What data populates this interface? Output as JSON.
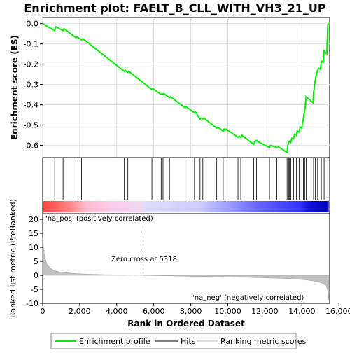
{
  "chart_data": {
    "type": "line",
    "title": "Enrichment plot: FAELT_B_CLL_WITH_VH3_21_UP",
    "xlabel": "Rank in Ordered Dataset",
    "colors": {
      "profile": "#00ee00",
      "hits": "#000000",
      "ranking": "#c0c0c0",
      "pos_label": "#cc0000",
      "neg_label": "#3333cc",
      "zero_line": "#aaaaaa"
    },
    "enrichment_panel": {
      "ylabel": "Enrichment score (ES)",
      "ylim": [
        -0.66,
        0.03
      ],
      "yticks": [
        0.0,
        -0.1,
        -0.2,
        -0.3,
        -0.4,
        -0.5,
        -0.6
      ],
      "ytick_labels": [
        "0.0",
        "-0.1",
        "-0.2",
        "-0.3",
        "-0.4",
        "-0.5",
        "-0.6"
      ],
      "grid": true,
      "profile_x": [
        0,
        650,
        720,
        1100,
        1160,
        1800,
        1850,
        2100,
        2180,
        4400,
        4450,
        4600,
        4650,
        5900,
        5950,
        6400,
        6450,
        6500,
        6550,
        6850,
        6900,
        7700,
        7750,
        8200,
        8250,
        8500,
        8550,
        8650,
        8700,
        9400,
        9450,
        9750,
        9800,
        9850,
        9900,
        10550,
        10600,
        10700,
        10750,
        11400,
        11450,
        11550,
        11600,
        12250,
        12300,
        12650,
        12700,
        13200,
        13230,
        13280,
        13320,
        13400,
        13450,
        13550,
        13600,
        13700,
        13750,
        13850,
        13900,
        14000,
        14030,
        14080,
        14110,
        14150,
        14190,
        14230,
        14600,
        14630,
        14680,
        14720,
        14780,
        14850,
        14900,
        15000,
        15050,
        15150,
        15200,
        15350,
        15400,
        15450
      ],
      "profile_y": [
        0.0,
        -0.035,
        -0.015,
        -0.035,
        -0.025,
        -0.07,
        -0.065,
        -0.08,
        -0.075,
        -0.235,
        -0.23,
        -0.24,
        -0.235,
        -0.325,
        -0.32,
        -0.35,
        -0.345,
        -0.35,
        -0.345,
        -0.365,
        -0.36,
        -0.415,
        -0.41,
        -0.44,
        -0.435,
        -0.47,
        -0.465,
        -0.47,
        -0.465,
        -0.515,
        -0.51,
        -0.53,
        -0.52,
        -0.525,
        -0.52,
        -0.56,
        -0.555,
        -0.56,
        -0.55,
        -0.595,
        -0.58,
        -0.575,
        -0.58,
        -0.61,
        -0.6,
        -0.61,
        -0.605,
        -0.635,
        -0.6,
        -0.59,
        -0.58,
        -0.585,
        -0.565,
        -0.57,
        -0.545,
        -0.55,
        -0.53,
        -0.535,
        -0.51,
        -0.515,
        -0.49,
        -0.47,
        -0.45,
        -0.43,
        -0.4,
        -0.36,
        -0.39,
        -0.34,
        -0.31,
        -0.28,
        -0.25,
        -0.23,
        -0.22,
        -0.225,
        -0.185,
        -0.19,
        -0.135,
        -0.15,
        -0.005,
        0.002
      ]
    },
    "hits_panel": {
      "hit_ranks": [
        650,
        1100,
        1800,
        2100,
        4400,
        4600,
        5900,
        6400,
        6500,
        6850,
        7700,
        8200,
        8500,
        8650,
        9400,
        9750,
        9850,
        10550,
        10700,
        11400,
        11550,
        12250,
        12650,
        13200,
        13280,
        13320,
        13400,
        13550,
        13700,
        13850,
        14000,
        14080,
        14150,
        14230,
        14630,
        14720,
        14850,
        15050,
        15200,
        15400
      ],
      "colorbar_stops": [
        {
          "pos": 0.0,
          "color": "#ff4444"
        },
        {
          "pos": 0.04,
          "color": "#ff5a5a"
        },
        {
          "pos": 0.1,
          "color": "#ff8a8a"
        },
        {
          "pos": 0.15,
          "color": "#ffbbcc"
        },
        {
          "pos": 0.24,
          "color": "#ffccee"
        },
        {
          "pos": 0.345,
          "color": "#f0d8f0"
        },
        {
          "pos": 0.36,
          "color": "#ddddff"
        },
        {
          "pos": 0.55,
          "color": "#ccccff"
        },
        {
          "pos": 0.66,
          "color": "#9999ff"
        },
        {
          "pos": 0.75,
          "color": "#6666ff"
        },
        {
          "pos": 0.9,
          "color": "#3333ff"
        },
        {
          "pos": 0.93,
          "color": "#1111dd"
        },
        {
          "pos": 1.0,
          "color": "#0000bb"
        }
      ]
    },
    "ranking_panel": {
      "ylabel": "Ranked list metric (PreRanked)",
      "ylim": [
        -10,
        22
      ],
      "yticks": [
        20,
        15,
        10,
        5,
        0,
        -5,
        -10
      ],
      "ytick_labels": [
        "20",
        "15",
        "10",
        "5",
        "0",
        "-5",
        "-10"
      ],
      "metric_x": [
        0,
        30,
        80,
        150,
        250,
        400,
        600,
        900,
        1300,
        1800,
        2500,
        3500,
        4500,
        5318,
        6500,
        8000,
        9500,
        11000,
        12000,
        13000,
        13800,
        14300,
        14800,
        15100,
        15300,
        15380,
        15430,
        15450
      ],
      "metric_y": [
        13.5,
        11,
        8,
        5.5,
        3.8,
        2.6,
        1.8,
        1.2,
        0.9,
        0.6,
        0.4,
        0.2,
        0.1,
        0.0,
        -0.15,
        -0.35,
        -0.5,
        -0.7,
        -0.9,
        -1.1,
        -1.4,
        -1.7,
        -2.2,
        -2.8,
        -3.6,
        -5,
        -7,
        -9
      ],
      "zero_cross_rank": 5318,
      "zero_cross_label": "Zero cross at 5318",
      "pos_label": "'na_pos' (positively correlated)",
      "neg_label": "'na_neg' (negatively correlated)"
    },
    "x_axis": {
      "xlim": [
        0,
        15500
      ],
      "xticks": [
        0,
        2000,
        4000,
        6000,
        8000,
        10000,
        12000,
        14000,
        16000
      ],
      "xtick_labels": [
        "0",
        "2,000",
        "4,000",
        "6,000",
        "8,000",
        "10,000",
        "12,000",
        "14,000",
        "16,000"
      ]
    },
    "legend": {
      "placement": "bottom",
      "entries": [
        {
          "label": "Enrichment profile",
          "kind": "profile"
        },
        {
          "label": "Hits",
          "kind": "hits"
        },
        {
          "label": "Ranking metric scores",
          "kind": "ranking"
        }
      ]
    }
  }
}
